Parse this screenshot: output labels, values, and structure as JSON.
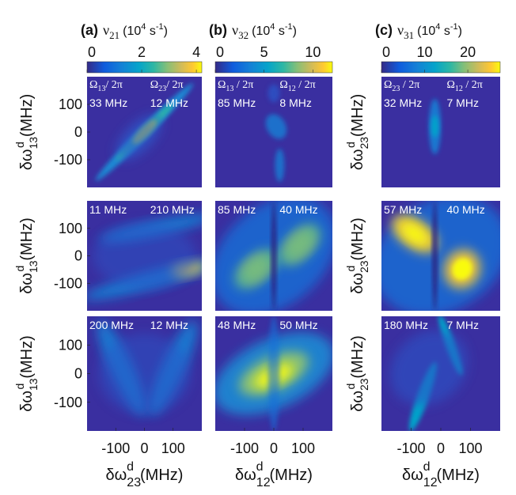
{
  "chart_data": [
    {
      "type": "heatmap",
      "label": "(a)",
      "cbar": {
        "sym": "ν",
        "sub": "21",
        "unit": [
          "(10",
          "4",
          " s",
          "-1",
          ")"
        ]
      },
      "clim": [
        0,
        4.2
      ],
      "cticks": [
        0,
        2,
        4
      ],
      "xlim": [
        -200,
        200
      ],
      "ylim": [
        -200,
        200
      ],
      "xticks": [
        -100,
        0,
        100
      ],
      "yticks": [
        100,
        0,
        -100
      ],
      "xlabel": {
        "base": "δω",
        "sub": "23",
        "sup": "d",
        "unit": "(MHz)"
      },
      "ylabel": {
        "base": "δω",
        "sub": "13",
        "sup": "d",
        "unit": "(MHz)"
      },
      "headers": [
        {
          "sym": "Ω",
          "sub": "13",
          "rest": "/ 2π"
        },
        {
          "sym": "Ω",
          "sub": "23",
          "rest": "/ 2π"
        }
      ],
      "panels": [
        [
          "33 MHz",
          "12 MHz"
        ],
        [
          "11 MHz",
          "210 MHz"
        ],
        [
          "200 MHz",
          "12 MHz"
        ]
      ]
    },
    {
      "type": "heatmap",
      "label": "(b)",
      "cbar": {
        "sym": "ν",
        "sub": "32",
        "unit": [
          "(10",
          "4",
          " s",
          "-1",
          ")"
        ]
      },
      "clim": [
        0,
        12
      ],
      "cticks": [
        0,
        5,
        10
      ],
      "xlim": [
        -200,
        200
      ],
      "ylim": [
        -200,
        200
      ],
      "xticks": [
        -100,
        0,
        100
      ],
      "xlabel": {
        "base": "δω",
        "sub": "12",
        "sup": "d",
        "unit": "(MHz)"
      },
      "headers": [
        {
          "sym": "Ω",
          "sub": "13",
          "rest": " / 2π"
        },
        {
          "sym": "Ω",
          "sub": "12",
          "rest": " / 2π"
        }
      ],
      "panels": [
        [
          "85 MHz",
          "8 MHz"
        ],
        [
          "85 MHz",
          "40 MHz"
        ],
        [
          "48 MHz",
          "50 MHz"
        ]
      ]
    },
    {
      "type": "heatmap",
      "label": "(c)",
      "cbar": {
        "sym": "ν",
        "sub": "31",
        "unit": [
          "(10",
          "4",
          " s",
          "-1",
          ")"
        ]
      },
      "clim": [
        0,
        27.5
      ],
      "cticks": [
        0,
        10,
        20
      ],
      "xlim": [
        -200,
        200
      ],
      "ylim": [
        -200,
        200
      ],
      "xticks": [
        -100,
        0,
        100
      ],
      "xlabel": {
        "base": "δω",
        "sub": "12",
        "sup": "d",
        "unit": "(MHz)"
      },
      "ylabel": {
        "base": "δω",
        "sub": "23",
        "sup": "d",
        "unit": "(MHz)"
      },
      "headers": [
        {
          "sym": "Ω",
          "sub": "23",
          "rest": " / 2π"
        },
        {
          "sym": "Ω",
          "sub": "12",
          "rest": " / 2π"
        }
      ],
      "panels": [
        [
          "32 MHz",
          "7 MHz"
        ],
        [
          "57 MHz",
          "40 MHz"
        ],
        [
          "180 MHz",
          "7 MHz"
        ]
      ]
    }
  ]
}
